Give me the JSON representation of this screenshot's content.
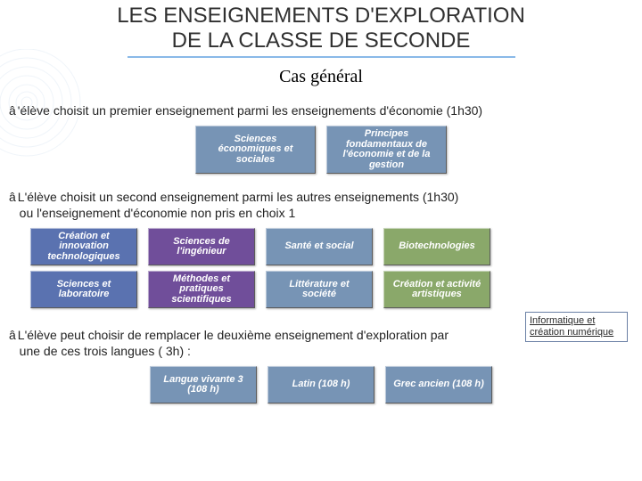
{
  "title_line1": "LES ENSEIGNEMENTS D'EXPLORATION",
  "title_line2": "DE LA CLASSE DE SECONDE",
  "subtitle": "Cas général",
  "arrow_glyph": "â",
  "para1": "'élève choisit un premier enseignement parmi les enseignements d'économie (1h30)",
  "para2_l1": "L'élève choisit un second enseignement parmi les autres enseignements (1h30)",
  "para2_l2": "ou l'enseignement d'économie non pris en choix 1",
  "para3_l1": "L'élève peut choisir de remplacer le deuxième enseignement d'exploration par",
  "para3_l2": "une de ces trois langues ( 3h) :",
  "sidebox_text": "Informatique et création numérique",
  "tiles_econ": [
    {
      "label": "Sciences économiques et sociales",
      "bg": "#7794b5"
    },
    {
      "label": "Principes fondamentaux de l'économie et de la gestion",
      "bg": "#7794b5"
    }
  ],
  "tiles_second_row1": [
    {
      "label": "Création et innovation technologiques",
      "bg": "#5a72b0"
    },
    {
      "label": "Sciences de l'ingénieur",
      "bg": "#704e9a"
    },
    {
      "label": "Santé et social",
      "bg": "#7794b5"
    },
    {
      "label": "Biotechnologies",
      "bg": "#8aa86a"
    }
  ],
  "tiles_second_row2": [
    {
      "label": "Sciences et laboratoire",
      "bg": "#5a72b0"
    },
    {
      "label": "Méthodes et pratiques scientifiques",
      "bg": "#704e9a"
    },
    {
      "label": "Littérature et société",
      "bg": "#7794b5"
    },
    {
      "label": "Création et activité artistiques",
      "bg": "#8aa86a"
    }
  ],
  "tiles_lang": [
    {
      "label": "Langue vivante 3 (108 h)",
      "bg": "#7794b5"
    },
    {
      "label": "Latin (108 h)",
      "bg": "#7794b5"
    },
    {
      "label": "Grec ancien (108 h)",
      "bg": "#7794b5"
    }
  ],
  "style": {
    "title_fontsize": 24,
    "subtitle_fontsize": 20,
    "body_fontsize": 14,
    "tile_fontsize": 11,
    "underline_color": "#8ab9e8",
    "deco_circle_stroke": "#b8cfe6",
    "tile_text_color": "#ffffff",
    "sidebox_border": "#6a80a5",
    "page_bg": "#ffffff"
  }
}
